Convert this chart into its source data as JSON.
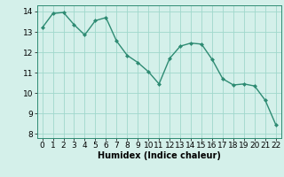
{
  "x": [
    0,
    1,
    2,
    3,
    4,
    5,
    6,
    7,
    8,
    9,
    10,
    11,
    12,
    13,
    14,
    15,
    16,
    17,
    18,
    19,
    20,
    21,
    22
  ],
  "y": [
    13.2,
    13.9,
    13.95,
    13.35,
    12.85,
    13.55,
    13.7,
    12.55,
    11.85,
    11.5,
    11.05,
    10.45,
    11.7,
    12.3,
    12.45,
    12.4,
    11.65,
    10.7,
    10.4,
    10.45,
    10.35,
    9.65,
    8.45
  ],
  "line_color": "#2e8b73",
  "marker": "D",
  "marker_size": 2,
  "linewidth": 1.0,
  "bg_color": "#d4f0ea",
  "grid_color": "#a0d8cc",
  "xlabel": "Humidex (Indice chaleur)",
  "xlim": [
    -0.5,
    22.5
  ],
  "ylim": [
    7.8,
    14.3
  ],
  "yticks": [
    8,
    9,
    10,
    11,
    12,
    13,
    14
  ],
  "xticks": [
    0,
    1,
    2,
    3,
    4,
    5,
    6,
    7,
    8,
    9,
    10,
    11,
    12,
    13,
    14,
    15,
    16,
    17,
    18,
    19,
    20,
    21,
    22
  ],
  "xlabel_fontsize": 7,
  "tick_fontsize": 6.5
}
